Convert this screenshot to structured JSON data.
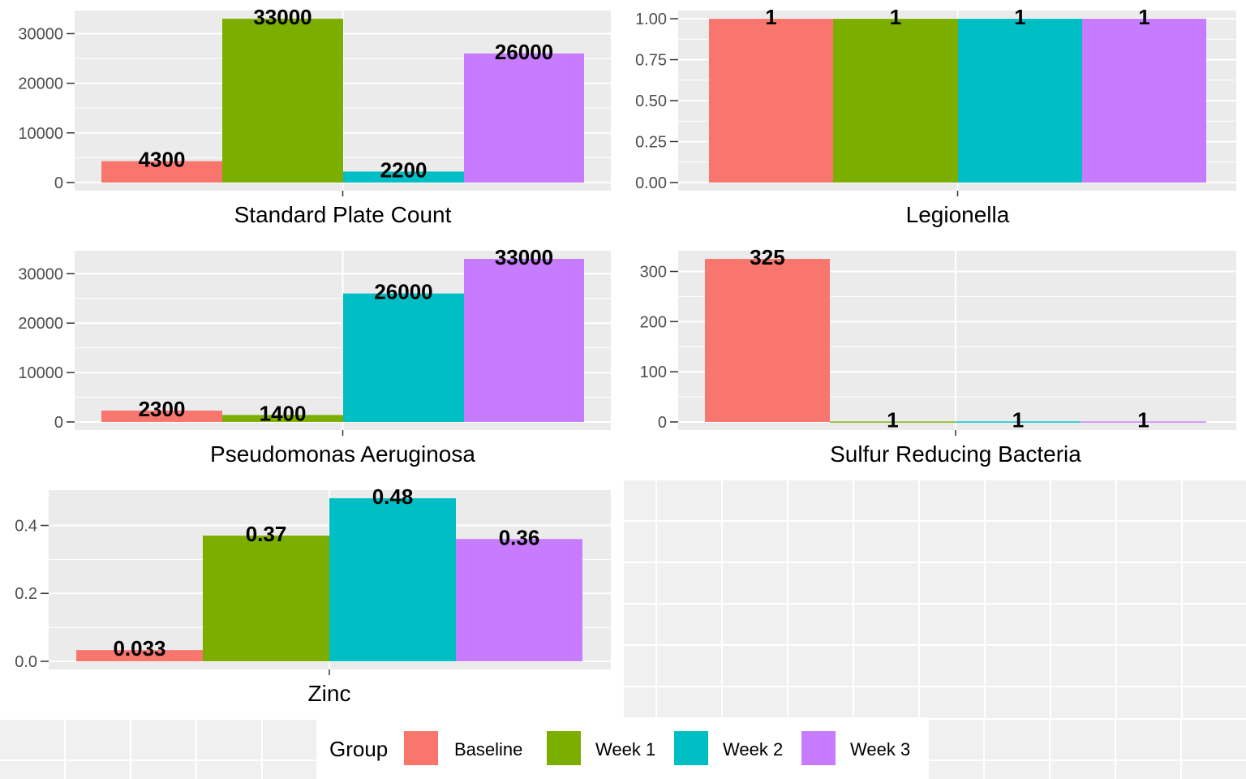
{
  "legend": {
    "title": "Group",
    "items": [
      {
        "label": "Baseline",
        "color": "#F8766D"
      },
      {
        "label": "Week 1",
        "color": "#7CAE00"
      },
      {
        "label": "Week 2",
        "color": "#00BFC4"
      },
      {
        "label": "Week 3",
        "color": "#C77CFF"
      }
    ]
  },
  "chart_data": [
    {
      "type": "bar",
      "xlabel": "Standard Plate Count",
      "series": [
        {
          "name": "Baseline",
          "values": [
            4300
          ],
          "label": "4300"
        },
        {
          "name": "Week 1",
          "values": [
            33000
          ],
          "label": "33000"
        },
        {
          "name": "Week 2",
          "values": [
            2200
          ],
          "label": "2200"
        },
        {
          "name": "Week 3",
          "values": [
            26000
          ],
          "label": "26000"
        }
      ],
      "ylim": [
        -1650,
        34650
      ],
      "yticks": [
        0,
        10000,
        20000,
        30000
      ],
      "ytick_labels": [
        "0",
        "10000",
        "20000",
        "30000"
      ],
      "grid": true
    },
    {
      "type": "bar",
      "xlabel": "Legionella",
      "series": [
        {
          "name": "Baseline",
          "values": [
            1
          ],
          "label": "1"
        },
        {
          "name": "Week 1",
          "values": [
            1
          ],
          "label": "1"
        },
        {
          "name": "Week 2",
          "values": [
            1
          ],
          "label": "1"
        },
        {
          "name": "Week 3",
          "values": [
            1
          ],
          "label": "1"
        }
      ],
      "ylim": [
        -0.05,
        1.05
      ],
      "yticks": [
        0,
        0.25,
        0.5,
        0.75,
        1
      ],
      "ytick_labels": [
        "0.00",
        "0.25",
        "0.50",
        "0.75",
        "1.00"
      ],
      "grid": true
    },
    {
      "type": "bar",
      "xlabel": "Pseudomonas Aeruginosa",
      "series": [
        {
          "name": "Baseline",
          "values": [
            2300
          ],
          "label": "2300"
        },
        {
          "name": "Week 1",
          "values": [
            1400
          ],
          "label": "1400"
        },
        {
          "name": "Week 2",
          "values": [
            26000
          ],
          "label": "26000"
        },
        {
          "name": "Week 3",
          "values": [
            33000
          ],
          "label": "33000"
        }
      ],
      "ylim": [
        -1650,
        34650
      ],
      "yticks": [
        0,
        10000,
        20000,
        30000
      ],
      "ytick_labels": [
        "0",
        "10000",
        "20000",
        "30000"
      ],
      "grid": true
    },
    {
      "type": "bar",
      "xlabel": "Sulfur Reducing Bacteria",
      "series": [
        {
          "name": "Baseline",
          "values": [
            325
          ],
          "label": "325"
        },
        {
          "name": "Week 1",
          "values": [
            1
          ],
          "label": "1"
        },
        {
          "name": "Week 2",
          "values": [
            1
          ],
          "label": "1"
        },
        {
          "name": "Week 3",
          "values": [
            1
          ],
          "label": "1"
        }
      ],
      "ylim": [
        -16.25,
        341.25
      ],
      "yticks": [
        0,
        100,
        200,
        300
      ],
      "ytick_labels": [
        "0",
        "100",
        "200",
        "300"
      ],
      "grid": true
    },
    {
      "type": "bar",
      "xlabel": "Zinc",
      "series": [
        {
          "name": "Baseline",
          "values": [
            0.033
          ],
          "label": "0.033"
        },
        {
          "name": "Week 1",
          "values": [
            0.37
          ],
          "label": "0.37"
        },
        {
          "name": "Week 2",
          "values": [
            0.48
          ],
          "label": "0.48"
        },
        {
          "name": "Week 3",
          "values": [
            0.36
          ],
          "label": "0.36"
        }
      ],
      "ylim": [
        -0.024,
        0.504
      ],
      "yticks": [
        0,
        0.2,
        0.4
      ],
      "ytick_labels": [
        "0.0",
        "0.2",
        "0.4"
      ],
      "grid": true
    }
  ]
}
